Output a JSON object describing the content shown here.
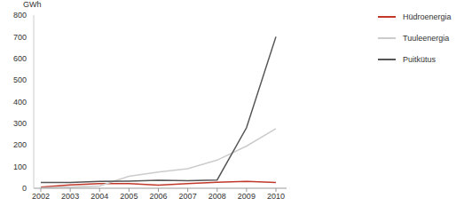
{
  "chart_data": {
    "type": "line",
    "y_label": "GWh",
    "categories": [
      "2002",
      "2003",
      "2004",
      "2005",
      "2006",
      "2007",
      "2008",
      "2009",
      "2010"
    ],
    "series": [
      {
        "name": "Hüdroenergia",
        "color": "#c0392b",
        "values": [
          5,
          15,
          22,
          22,
          14,
          22,
          28,
          32,
          27
        ]
      },
      {
        "name": "Tuuleenergia",
        "color": "#cccccc",
        "values": [
          2,
          5,
          10,
          55,
          75,
          90,
          130,
          195,
          275
        ]
      },
      {
        "name": "Puitkütus",
        "color": "#555555",
        "values": [
          27,
          27,
          32,
          33,
          37,
          35,
          38,
          280,
          700
        ]
      }
    ],
    "ylim": [
      0,
      800
    ],
    "yticks": [
      0,
      100,
      200,
      300,
      400,
      500,
      600,
      700,
      800
    ],
    "grid": false,
    "legend": "right"
  }
}
